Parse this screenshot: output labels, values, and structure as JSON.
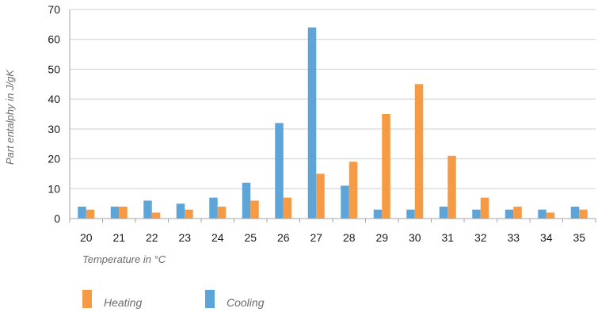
{
  "chart_data": {
    "type": "bar",
    "title": "",
    "xlabel": "Temperature in °C",
    "ylabel": "Part entalphy in J/gK",
    "categories": [
      "20",
      "21",
      "22",
      "23",
      "24",
      "25",
      "26",
      "27",
      "28",
      "29",
      "30",
      "31",
      "32",
      "33",
      "34",
      "35"
    ],
    "series": [
      {
        "name": "Cooling",
        "color": "#5da5d8",
        "values": [
          4,
          4,
          6,
          5,
          7,
          12,
          32,
          64,
          11,
          3,
          3,
          4,
          3,
          3,
          3,
          4
        ]
      },
      {
        "name": "Heating",
        "color": "#f59a45",
        "values": [
          3,
          4,
          2,
          3,
          4,
          6,
          7,
          15,
          19,
          35,
          45,
          21,
          7,
          4,
          2,
          3
        ]
      }
    ],
    "ylim": [
      0,
      70
    ],
    "yticks": [
      0,
      10,
      20,
      30,
      40,
      50,
      60,
      70
    ],
    "grid": true,
    "legend": {
      "placement": "bottom-left",
      "order": [
        "Heating",
        "Cooling"
      ]
    }
  }
}
